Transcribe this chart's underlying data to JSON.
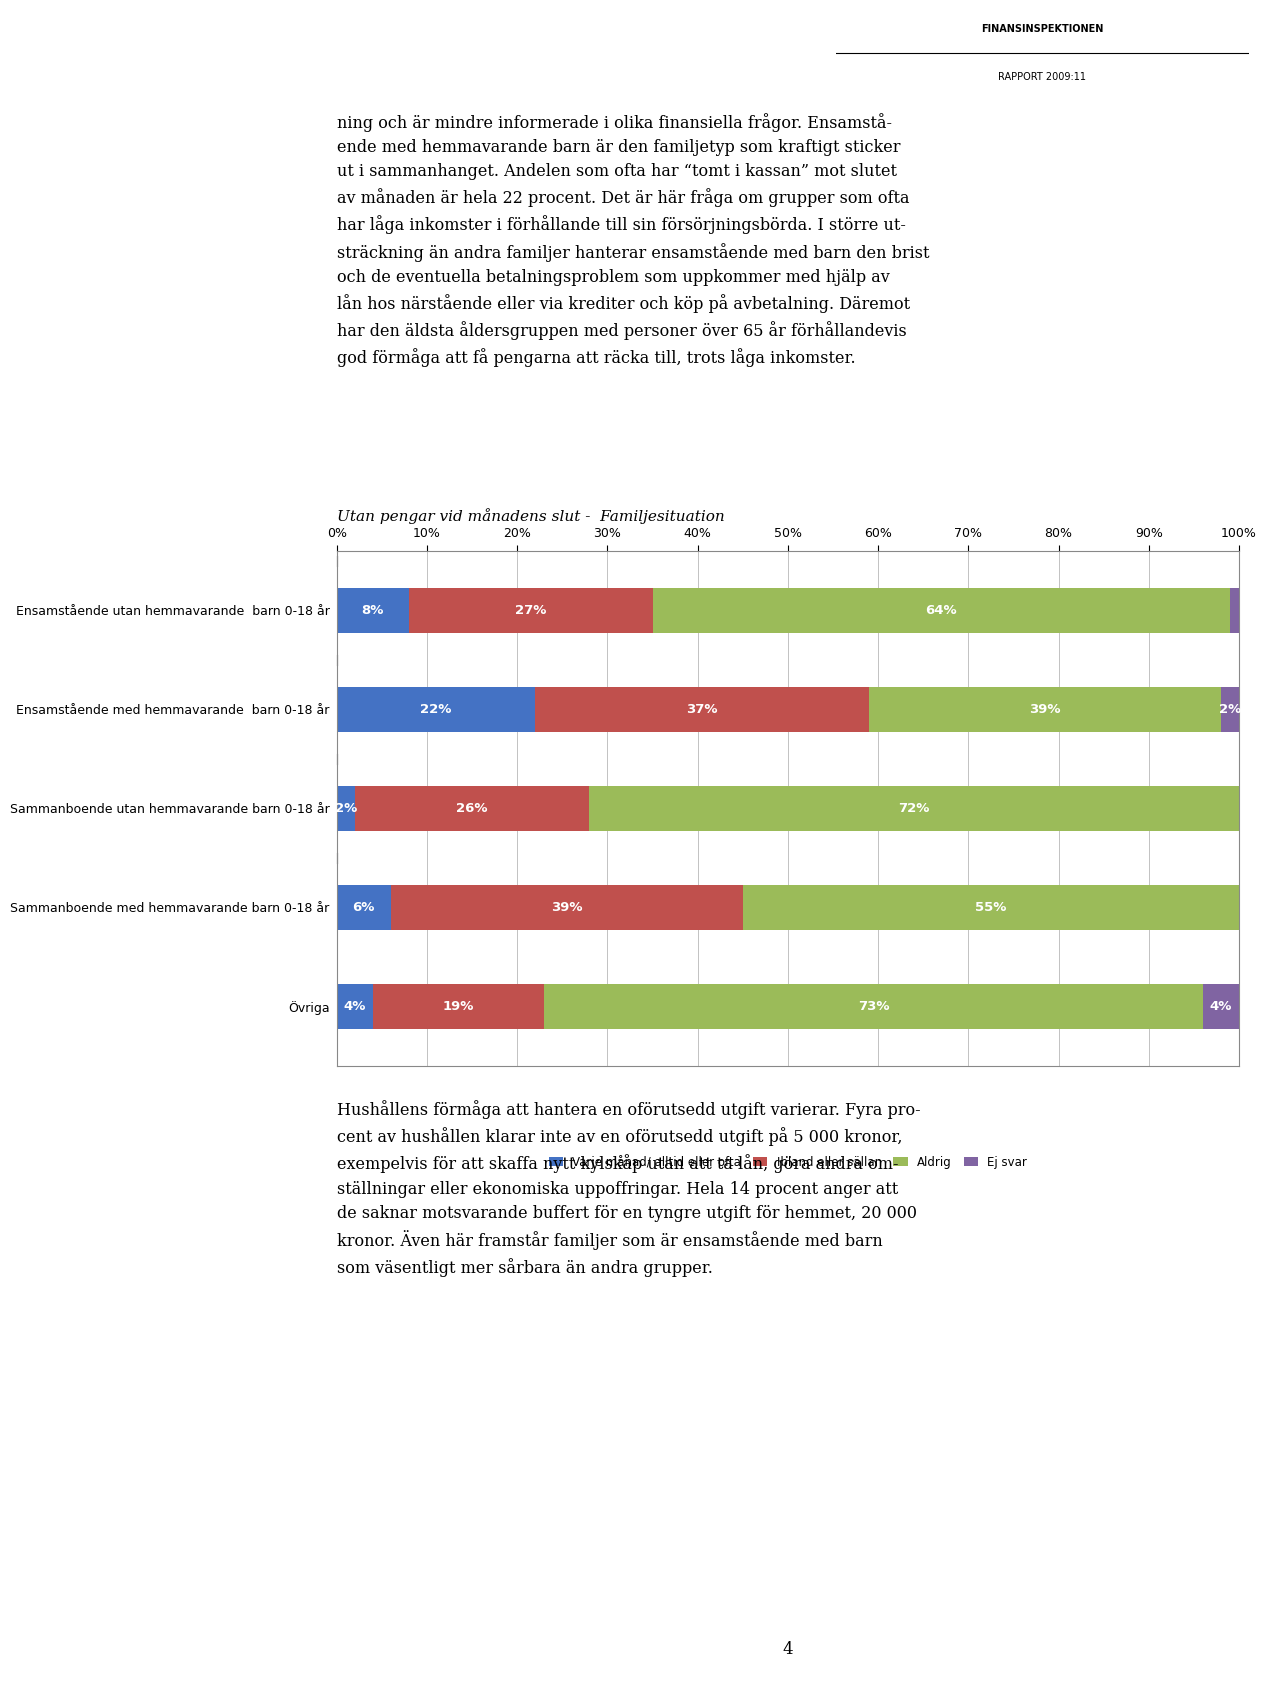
{
  "title": "Utan pengar vid månadens slut -  Familjesituation",
  "categories": [
    "Ensamstående utan hemmavarande  barn 0-18 år",
    "Ensamstående med hemmavarande  barn 0-18 år",
    "Sammanboende utan hemmavarande barn 0-18 år",
    "Sammanboende med hemmavarande barn 0-18 år",
    "Övriga"
  ],
  "series": [
    {
      "label": "Varje månad/ alltid eller ofta",
      "color": "#4472C4",
      "values": [
        8,
        22,
        2,
        6,
        4
      ]
    },
    {
      "label": "Ibland eller sällan",
      "color": "#C0504D",
      "values": [
        27,
        37,
        26,
        39,
        19
      ]
    },
    {
      "label": "Aldrig",
      "color": "#9BBB59",
      "values": [
        64,
        39,
        72,
        55,
        73
      ]
    },
    {
      "label": "Ej svar",
      "color": "#8064A2",
      "values": [
        1,
        2,
        0,
        0,
        4
      ]
    }
  ],
  "xticks": [
    0,
    10,
    20,
    30,
    40,
    50,
    60,
    70,
    80,
    90,
    100
  ],
  "xtick_labels": [
    "0%",
    "10%",
    "20%",
    "30%",
    "40%",
    "50%",
    "60%",
    "70%",
    "80%",
    "90%",
    "100%"
  ],
  "bar_text_color": "#FFFFFF",
  "background_color": "#FFFFFF",
  "chart_bg": "#FFFFFF",
  "header_line1": "FINANSINSPEKTIONEN",
  "header_line2": "RAPPORT 2009:11",
  "body_text_top": "ning och är mindre informerade i olika finansiella frågor. Ensamstå-\nende med hemmavarande barn är den familjetyp som kraftigt sticker\nut i sammanhanget. Andelen som ofta har “tomt i kassan” mot slutet\nav månaden är hela 22 procent. Det är här fråga om grupper som ofta\nhar låga inkomster i förhållande till sin försörjningsbörda. I större ut-\nsträckning än andra familjer hanterar ensamstående med barn den brist\noch de eventuella betalningsproblem som uppkommer med hjälp av\nlån hos närstående eller via krediter och köp på avbetalning. Däremot\nhar den äldsta åldersgruppen med personer över 65 år förhållandevis\ngod förmåga att få pengarna att räcka till, trots låga inkomster.",
  "body_text_bottom": "Hushållens förmåga att hantera en oförutsedd utgift varierar. Fyra pro-\ncent av hushållen klarar inte av en oförutsedd utgift på 5 000 kronor,\nexempelvis för att skaffa nytt kylskåp utan att ta lån, göra andra om-\nställningar eller ekonomiska uppoffringar. Hela 14 procent anger att\nde saknar motsvarande buffert för en tyngre utgift för hemmet, 20 000\nkronor. Även här framstår familjer som är ensamstående med barn\nsom väsentligt mer sårbara än andra grupper.",
  "page_number": "4"
}
